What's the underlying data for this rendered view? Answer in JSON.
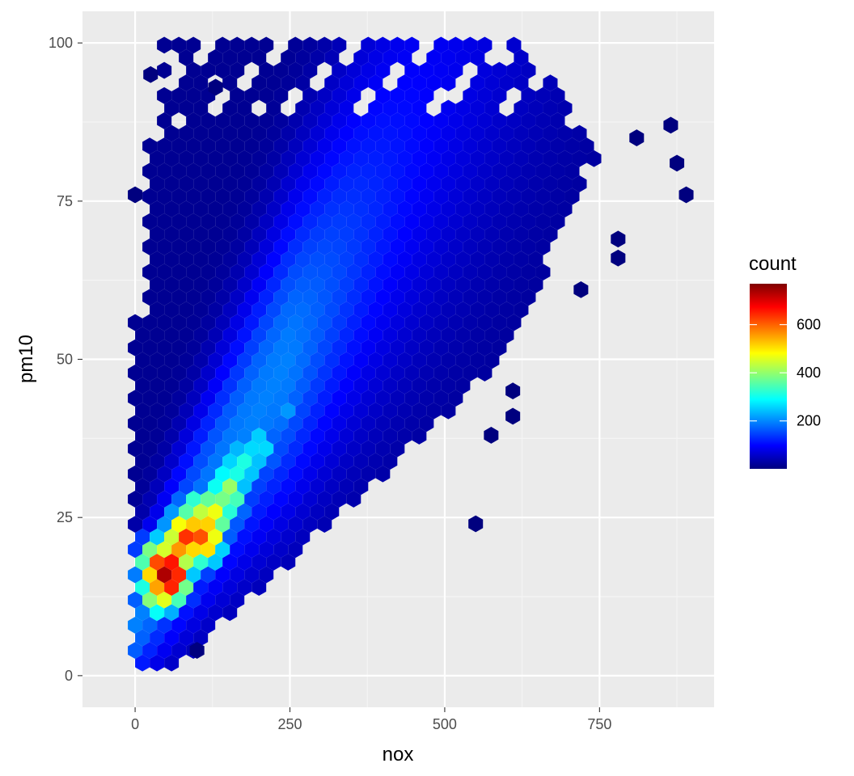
{
  "chart_data": {
    "type": "heatmap",
    "subtype": "hexbin",
    "title": "",
    "xlabel": "nox",
    "ylabel": "pm10",
    "xlim": [
      -85,
      935
    ],
    "ylim": [
      -5,
      105
    ],
    "x_ticks": [
      0,
      250,
      500,
      750
    ],
    "y_ticks": [
      0,
      25,
      50,
      75,
      100
    ],
    "x_tick_labels": [
      "0",
      "250",
      "500",
      "750"
    ],
    "y_tick_labels": [
      "0",
      "25",
      "50",
      "75",
      "100"
    ],
    "grid": true,
    "legend": {
      "title": "count",
      "position": "right",
      "range": [
        1,
        770
      ],
      "ticks": [
        200,
        400,
        600
      ],
      "tick_labels": [
        "200",
        "400",
        "600"
      ],
      "colors": [
        "#00007F",
        "#0000FF",
        "#007FFF",
        "#00FFFF",
        "#7FFF7F",
        "#FFFF00",
        "#FF7F00",
        "#FF0000",
        "#7F0000"
      ]
    },
    "density": {
      "description_of_shape": "dense cloud bounded below by line pm10 ~ 0.09*nox",
      "peak": {
        "nox": 55,
        "pm10": 16,
        "count": 770
      },
      "hot_spots": [
        {
          "nox": 55,
          "pm10": 16,
          "count": 770
        },
        {
          "nox": 40,
          "pm10": 17,
          "count": 650
        },
        {
          "nox": 85,
          "pm10": 22,
          "count": 640
        },
        {
          "nox": 110,
          "pm10": 22,
          "count": 620
        },
        {
          "nox": 40,
          "pm10": 14,
          "count": 560
        },
        {
          "nox": 70,
          "pm10": 20,
          "count": 560
        },
        {
          "nox": 130,
          "pm10": 26,
          "count": 470
        },
        {
          "nox": 100,
          "pm10": 25,
          "count": 460
        },
        {
          "nox": 150,
          "pm10": 29,
          "count": 420
        },
        {
          "nox": 170,
          "pm10": 33,
          "count": 330
        },
        {
          "nox": 200,
          "pm10": 36,
          "count": 290
        },
        {
          "nox": 240,
          "pm10": 42,
          "count": 220
        },
        {
          "nox": 300,
          "pm10": 52,
          "count": 150
        }
      ],
      "outliers": [
        {
          "nox": 0,
          "pm10": 76
        },
        {
          "nox": 25,
          "pm10": 95
        },
        {
          "nox": 130,
          "pm10": 93
        },
        {
          "nox": 550,
          "pm10": 24
        },
        {
          "nox": 810,
          "pm10": 85
        },
        {
          "nox": 865,
          "pm10": 87
        },
        {
          "nox": 875,
          "pm10": 81
        },
        {
          "nox": 890,
          "pm10": 76
        },
        {
          "nox": 780,
          "pm10": 66
        },
        {
          "nox": 780,
          "pm10": 69
        },
        {
          "nox": 720,
          "pm10": 61
        },
        {
          "nox": 610,
          "pm10": 45
        },
        {
          "nox": 610,
          "pm10": 41
        },
        {
          "nox": 575,
          "pm10": 38
        },
        {
          "nox": 100,
          "pm10": 4
        }
      ]
    }
  }
}
